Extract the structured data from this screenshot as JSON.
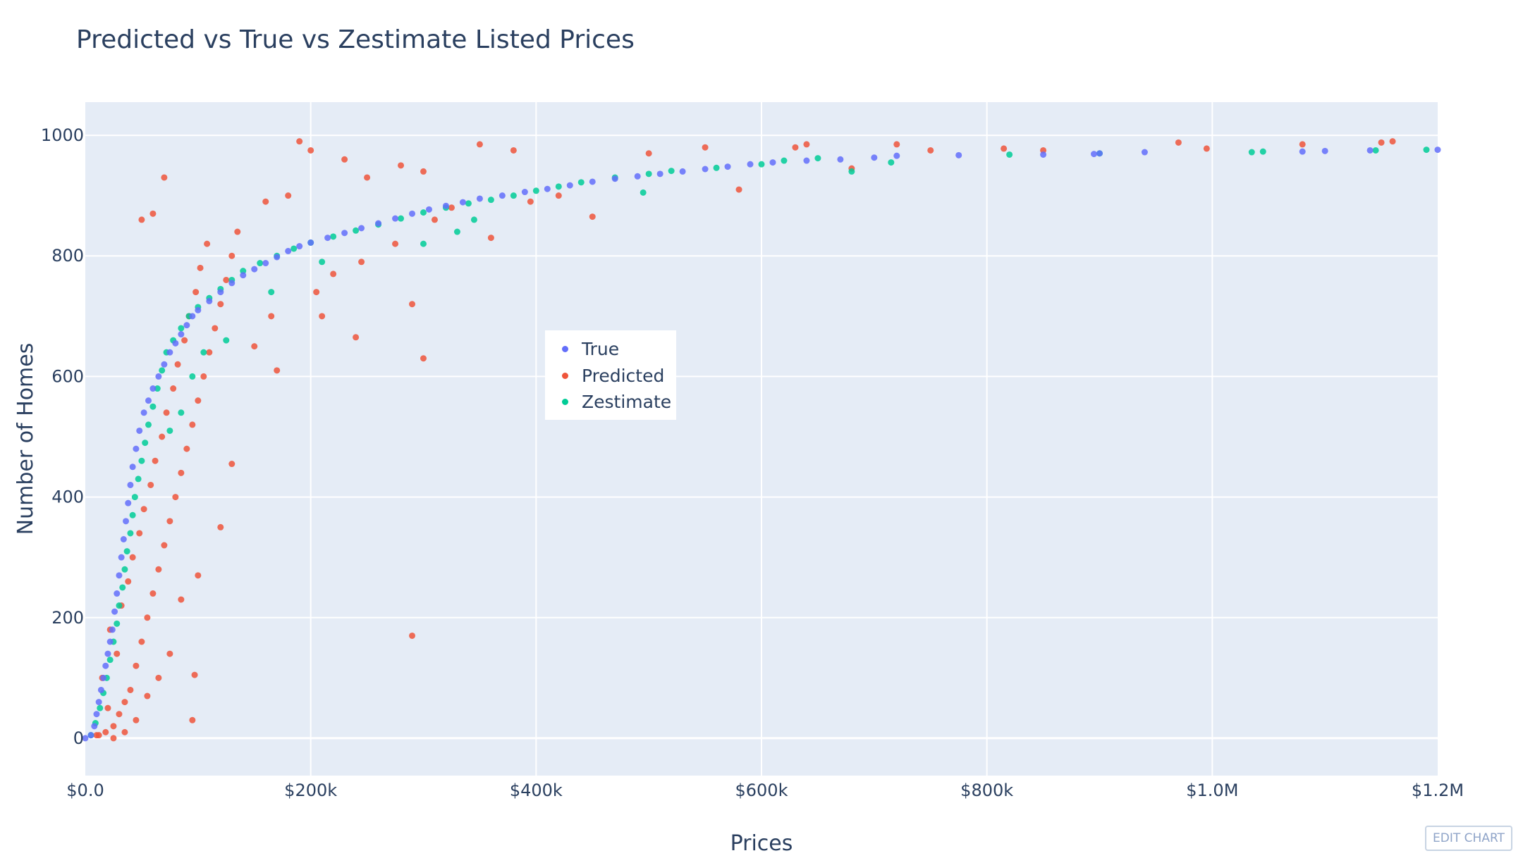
{
  "chart_data": {
    "type": "scatter",
    "title": "Predicted vs True vs Zestimate Listed Prices",
    "xlabel": "Prices",
    "ylabel": "Number of Homes",
    "xlim": [
      0,
      1200000
    ],
    "ylim": [
      -62,
      1055
    ],
    "x_ticks": [
      {
        "value": 0,
        "label": "$0.0"
      },
      {
        "value": 200000,
        "label": "$200k"
      },
      {
        "value": 400000,
        "label": "$400k"
      },
      {
        "value": 600000,
        "label": "$600k"
      },
      {
        "value": 800000,
        "label": "$800k"
      },
      {
        "value": 1000000,
        "label": "$1.0M"
      },
      {
        "value": 1200000,
        "label": "$1.2M"
      }
    ],
    "y_ticks": [
      {
        "value": 0,
        "label": "0"
      },
      {
        "value": 200,
        "label": "200"
      },
      {
        "value": 400,
        "label": "400"
      },
      {
        "value": 600,
        "label": "600"
      },
      {
        "value": 800,
        "label": "800"
      },
      {
        "value": 1000,
        "label": "1000"
      }
    ],
    "grid": true,
    "legend_position": "center",
    "series": [
      {
        "name": "True",
        "color": "#636efa",
        "points": [
          [
            0,
            0
          ],
          [
            5000,
            5
          ],
          [
            8000,
            20
          ],
          [
            10000,
            40
          ],
          [
            12000,
            60
          ],
          [
            14000,
            80
          ],
          [
            16000,
            100
          ],
          [
            18000,
            120
          ],
          [
            20000,
            140
          ],
          [
            22000,
            160
          ],
          [
            24000,
            180
          ],
          [
            26000,
            210
          ],
          [
            28000,
            240
          ],
          [
            30000,
            270
          ],
          [
            32000,
            300
          ],
          [
            34000,
            330
          ],
          [
            36000,
            360
          ],
          [
            38000,
            390
          ],
          [
            40000,
            420
          ],
          [
            42000,
            450
          ],
          [
            45000,
            480
          ],
          [
            48000,
            510
          ],
          [
            52000,
            540
          ],
          [
            56000,
            560
          ],
          [
            60000,
            580
          ],
          [
            65000,
            600
          ],
          [
            70000,
            620
          ],
          [
            75000,
            640
          ],
          [
            80000,
            655
          ],
          [
            85000,
            670
          ],
          [
            90000,
            685
          ],
          [
            95000,
            700
          ],
          [
            100000,
            710
          ],
          [
            110000,
            725
          ],
          [
            120000,
            740
          ],
          [
            130000,
            755
          ],
          [
            140000,
            768
          ],
          [
            150000,
            778
          ],
          [
            160000,
            788
          ],
          [
            170000,
            798
          ],
          [
            180000,
            808
          ],
          [
            190000,
            816
          ],
          [
            200000,
            822
          ],
          [
            215000,
            830
          ],
          [
            230000,
            838
          ],
          [
            245000,
            846
          ],
          [
            260000,
            854
          ],
          [
            275000,
            862
          ],
          [
            290000,
            870
          ],
          [
            305000,
            877
          ],
          [
            320000,
            883
          ],
          [
            335000,
            889
          ],
          [
            350000,
            895
          ],
          [
            370000,
            900
          ],
          [
            390000,
            906
          ],
          [
            410000,
            911
          ],
          [
            430000,
            917
          ],
          [
            450000,
            923
          ],
          [
            470000,
            928
          ],
          [
            490000,
            932
          ],
          [
            510000,
            936
          ],
          [
            530000,
            940
          ],
          [
            550000,
            944
          ],
          [
            570000,
            948
          ],
          [
            590000,
            952
          ],
          [
            610000,
            955
          ],
          [
            640000,
            958
          ],
          [
            670000,
            960
          ],
          [
            700000,
            963
          ],
          [
            720000,
            966
          ],
          [
            775000,
            967
          ],
          [
            850000,
            968
          ],
          [
            895000,
            969
          ],
          [
            900000,
            970
          ],
          [
            940000,
            972
          ],
          [
            1080000,
            973
          ],
          [
            1100000,
            974
          ],
          [
            1140000,
            975
          ],
          [
            1200000,
            976
          ]
        ]
      },
      {
        "name": "Predicted",
        "color": "#ef553b",
        "points": [
          [
            12000,
            5
          ],
          [
            18000,
            10
          ],
          [
            25000,
            20
          ],
          [
            30000,
            40
          ],
          [
            20000,
            50
          ],
          [
            35000,
            60
          ],
          [
            40000,
            80
          ],
          [
            15000,
            100
          ],
          [
            45000,
            120
          ],
          [
            28000,
            140
          ],
          [
            50000,
            160
          ],
          [
            22000,
            180
          ],
          [
            55000,
            200
          ],
          [
            32000,
            220
          ],
          [
            60000,
            240
          ],
          [
            38000,
            260
          ],
          [
            65000,
            280
          ],
          [
            42000,
            300
          ],
          [
            70000,
            320
          ],
          [
            48000,
            340
          ],
          [
            75000,
            360
          ],
          [
            52000,
            380
          ],
          [
            80000,
            400
          ],
          [
            58000,
            420
          ],
          [
            85000,
            440
          ],
          [
            62000,
            460
          ],
          [
            90000,
            480
          ],
          [
            68000,
            500
          ],
          [
            95000,
            520
          ],
          [
            72000,
            540
          ],
          [
            100000,
            560
          ],
          [
            78000,
            580
          ],
          [
            105000,
            600
          ],
          [
            82000,
            620
          ],
          [
            110000,
            640
          ],
          [
            88000,
            660
          ],
          [
            115000,
            680
          ],
          [
            92000,
            700
          ],
          [
            120000,
            720
          ],
          [
            98000,
            740
          ],
          [
            125000,
            760
          ],
          [
            102000,
            780
          ],
          [
            130000,
            800
          ],
          [
            108000,
            820
          ],
          [
            135000,
            840
          ],
          [
            50000,
            860
          ],
          [
            60000,
            870
          ],
          [
            70000,
            930
          ],
          [
            190000,
            990
          ],
          [
            200000,
            975
          ],
          [
            230000,
            960
          ],
          [
            160000,
            890
          ],
          [
            180000,
            900
          ],
          [
            250000,
            930
          ],
          [
            280000,
            950
          ],
          [
            300000,
            940
          ],
          [
            350000,
            985
          ],
          [
            380000,
            975
          ],
          [
            450000,
            865
          ],
          [
            500000,
            970
          ],
          [
            550000,
            980
          ],
          [
            580000,
            910
          ],
          [
            630000,
            980
          ],
          [
            640000,
            985
          ],
          [
            680000,
            945
          ],
          [
            720000,
            985
          ],
          [
            750000,
            975
          ],
          [
            815000,
            978
          ],
          [
            850000,
            975
          ],
          [
            970000,
            988
          ],
          [
            995000,
            978
          ],
          [
            1080000,
            985
          ],
          [
            1150000,
            988
          ],
          [
            1160000,
            990
          ],
          [
            290000,
            170
          ],
          [
            95000,
            30
          ],
          [
            97000,
            105
          ],
          [
            300000,
            630
          ],
          [
            290000,
            720
          ],
          [
            240000,
            665
          ],
          [
            170000,
            610
          ],
          [
            210000,
            700
          ],
          [
            130000,
            455
          ],
          [
            120000,
            350
          ],
          [
            100000,
            270
          ],
          [
            85000,
            230
          ],
          [
            75000,
            140
          ],
          [
            65000,
            100
          ],
          [
            55000,
            70
          ],
          [
            45000,
            30
          ],
          [
            35000,
            10
          ],
          [
            25000,
            0
          ],
          [
            10000,
            5
          ],
          [
            150000,
            650
          ],
          [
            165000,
            700
          ],
          [
            205000,
            740
          ],
          [
            220000,
            770
          ],
          [
            245000,
            790
          ],
          [
            275000,
            820
          ],
          [
            310000,
            860
          ],
          [
            325000,
            880
          ],
          [
            360000,
            830
          ],
          [
            395000,
            890
          ],
          [
            420000,
            900
          ]
        ]
      },
      {
        "name": "Zestimate",
        "color": "#00cc96",
        "points": [
          [
            5000,
            5
          ],
          [
            9000,
            25
          ],
          [
            13000,
            50
          ],
          [
            16000,
            75
          ],
          [
            19000,
            100
          ],
          [
            22000,
            130
          ],
          [
            25000,
            160
          ],
          [
            28000,
            190
          ],
          [
            30000,
            220
          ],
          [
            33000,
            250
          ],
          [
            35000,
            280
          ],
          [
            37000,
            310
          ],
          [
            40000,
            340
          ],
          [
            42000,
            370
          ],
          [
            44000,
            400
          ],
          [
            47000,
            430
          ],
          [
            50000,
            460
          ],
          [
            53000,
            490
          ],
          [
            56000,
            520
          ],
          [
            60000,
            550
          ],
          [
            64000,
            580
          ],
          [
            68000,
            610
          ],
          [
            72000,
            640
          ],
          [
            78000,
            660
          ],
          [
            85000,
            680
          ],
          [
            92000,
            700
          ],
          [
            100000,
            715
          ],
          [
            110000,
            730
          ],
          [
            120000,
            745
          ],
          [
            130000,
            760
          ],
          [
            140000,
            775
          ],
          [
            155000,
            788
          ],
          [
            170000,
            800
          ],
          [
            185000,
            812
          ],
          [
            200000,
            822
          ],
          [
            220000,
            832
          ],
          [
            240000,
            842
          ],
          [
            260000,
            852
          ],
          [
            280000,
            862
          ],
          [
            300000,
            872
          ],
          [
            320000,
            880
          ],
          [
            340000,
            887
          ],
          [
            360000,
            893
          ],
          [
            380000,
            900
          ],
          [
            400000,
            908
          ],
          [
            420000,
            915
          ],
          [
            440000,
            922
          ],
          [
            470000,
            930
          ],
          [
            500000,
            936
          ],
          [
            520000,
            941
          ],
          [
            560000,
            946
          ],
          [
            600000,
            952
          ],
          [
            620000,
            958
          ],
          [
            650000,
            962
          ],
          [
            680000,
            940
          ],
          [
            715000,
            955
          ],
          [
            820000,
            968
          ],
          [
            900000,
            970
          ],
          [
            1035000,
            972
          ],
          [
            1045000,
            973
          ],
          [
            1145000,
            975
          ],
          [
            1190000,
            976
          ],
          [
            75000,
            510
          ],
          [
            85000,
            540
          ],
          [
            95000,
            600
          ],
          [
            105000,
            640
          ],
          [
            125000,
            660
          ],
          [
            165000,
            740
          ],
          [
            210000,
            790
          ],
          [
            300000,
            820
          ],
          [
            330000,
            840
          ],
          [
            345000,
            860
          ],
          [
            495000,
            905
          ]
        ]
      }
    ]
  },
  "legend": {
    "items": [
      {
        "label": "True",
        "color": "#636efa"
      },
      {
        "label": "Predicted",
        "color": "#ef553b"
      },
      {
        "label": "Zestimate",
        "color": "#00cc96"
      }
    ]
  },
  "toolbar": {
    "edit_chart_label": "EDIT CHART"
  }
}
